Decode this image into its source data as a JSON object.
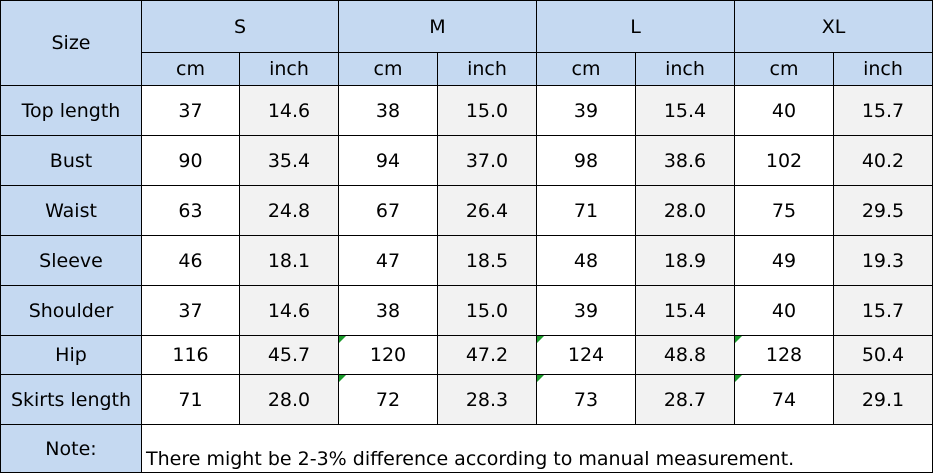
{
  "table": {
    "corner": "Size",
    "sizes": [
      "S",
      "M",
      "L",
      "XL"
    ],
    "units": [
      "cm",
      "inch",
      "cm",
      "inch",
      "cm",
      "inch",
      "cm",
      "inch"
    ],
    "rows": [
      {
        "label": "Top  length",
        "cells": [
          "37",
          "14.6",
          "38",
          "15.0",
          "39",
          "15.4",
          "40",
          "15.7"
        ]
      },
      {
        "label": "Bust",
        "cells": [
          "90",
          "35.4",
          "94",
          "37.0",
          "98",
          "38.6",
          "102",
          "40.2"
        ]
      },
      {
        "label": "Waist",
        "cells": [
          "63",
          "24.8",
          "67",
          "26.4",
          "71",
          "28.0",
          "75",
          "29.5"
        ]
      },
      {
        "label": "Sleeve",
        "cells": [
          "46",
          "18.1",
          "47",
          "18.5",
          "48",
          "18.9",
          "49",
          "19.3"
        ]
      },
      {
        "label": "Shoulder",
        "cells": [
          "37",
          "14.6",
          "38",
          "15.0",
          "39",
          "15.4",
          "40",
          "15.7"
        ]
      },
      {
        "label": "Hip",
        "cells": [
          "116",
          "45.7",
          "120",
          "47.2",
          "124",
          "48.8",
          "128",
          "50.4"
        ]
      },
      {
        "label": "Skirts length",
        "cells": [
          "71",
          "28.0",
          "72",
          "28.3",
          "73",
          "28.7",
          "74",
          "29.1"
        ]
      }
    ],
    "note_label": "Note:",
    "note": "There might be 2-3% difference according to manual measurement."
  }
}
